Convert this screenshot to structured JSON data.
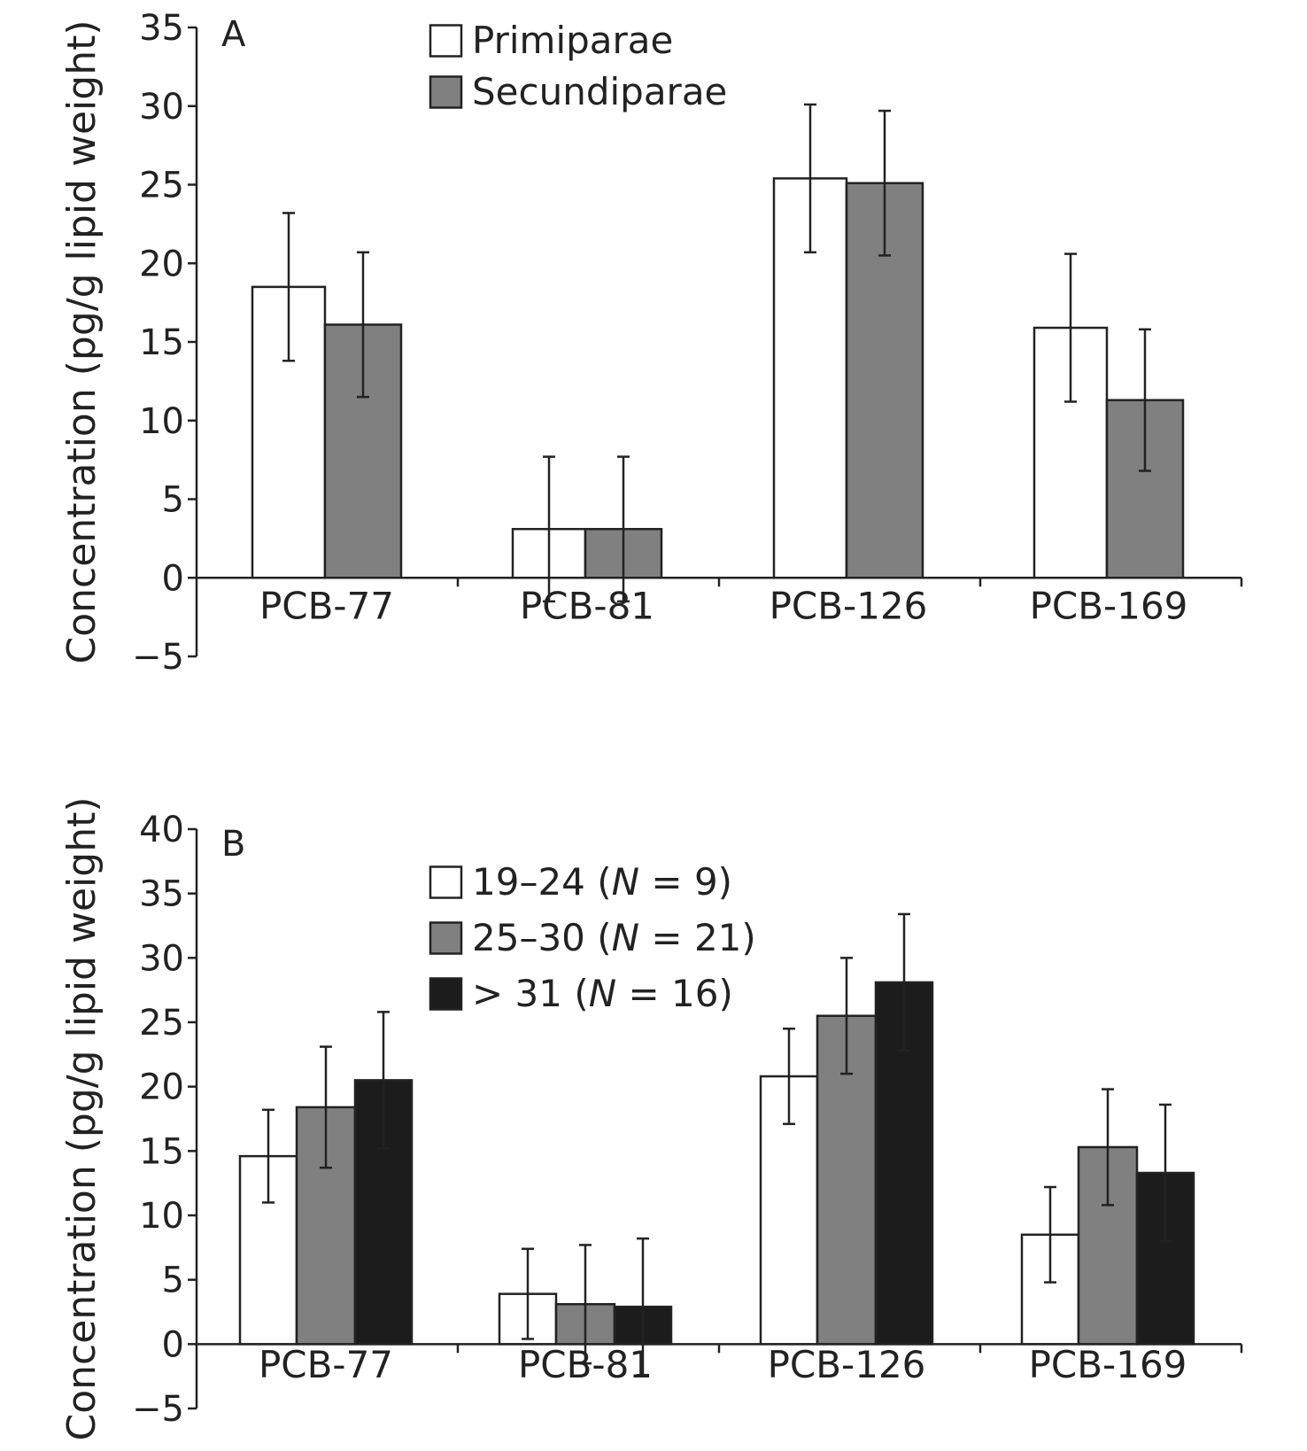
{
  "chart_data": [
    {
      "type": "bar",
      "panel_label": "A",
      "ylabel": "Concentration (pg/g lipid weight)",
      "xlabel": "",
      "ylim": [
        -5,
        35
      ],
      "yticks": [
        -5,
        0,
        5,
        10,
        15,
        20,
        25,
        30,
        35
      ],
      "yticks_display": [
        "−5",
        "0",
        "5",
        "10",
        "15",
        "20",
        "25",
        "30",
        "35"
      ],
      "categories": [
        "PCB-77",
        "PCB-81",
        "PCB-126",
        "PCB-169"
      ],
      "legend_position": "top-center",
      "series": [
        {
          "name": "Primiparae",
          "name_parts": [
            "Primiparae"
          ],
          "color": "#ffffff",
          "values": [
            18.5,
            3.1,
            25.4,
            15.9
          ],
          "errors": [
            4.7,
            4.6,
            4.7,
            4.7
          ]
        },
        {
          "name": "Secundiparae",
          "name_parts": [
            "Secundiparae"
          ],
          "color": "#808080",
          "values": [
            16.1,
            3.1,
            25.1,
            11.3
          ],
          "errors": [
            4.6,
            4.6,
            4.6,
            4.5
          ]
        }
      ]
    },
    {
      "type": "bar",
      "panel_label": "B",
      "ylabel": "Concentration (pg/g lipid weight)",
      "xlabel": "",
      "ylim": [
        -5,
        40
      ],
      "yticks": [
        -5,
        0,
        5,
        10,
        15,
        20,
        25,
        30,
        35,
        40
      ],
      "yticks_display": [
        "−5",
        "0",
        "5",
        "10",
        "15",
        "20",
        "25",
        "30",
        "35",
        "40"
      ],
      "categories": [
        "PCB-77",
        "PCB-81",
        "PCB-126",
        "PCB-169"
      ],
      "legend_position": "top-center",
      "series": [
        {
          "name": "19–24 (N = 9)",
          "name_parts": [
            "19–24 (",
            "N",
            " = 9)"
          ],
          "color": "#ffffff",
          "values": [
            14.6,
            3.9,
            20.8,
            8.5
          ],
          "errors": [
            3.6,
            3.5,
            3.7,
            3.7
          ]
        },
        {
          "name": "25–30 (N = 21)",
          "name_parts": [
            "25–30 (",
            "N",
            " = 21)"
          ],
          "color": "#808080",
          "values": [
            18.4,
            3.1,
            25.5,
            15.3
          ],
          "errors": [
            4.7,
            4.6,
            4.5,
            4.5
          ]
        },
        {
          "name": "> 31 (N = 16)",
          "name_parts": [
            "> 31 (",
            "N",
            " = 16)"
          ],
          "color": "#1c1c1c",
          "values": [
            20.5,
            2.9,
            28.1,
            13.3
          ],
          "errors": [
            5.3,
            5.3,
            5.3,
            5.3
          ]
        }
      ]
    }
  ]
}
